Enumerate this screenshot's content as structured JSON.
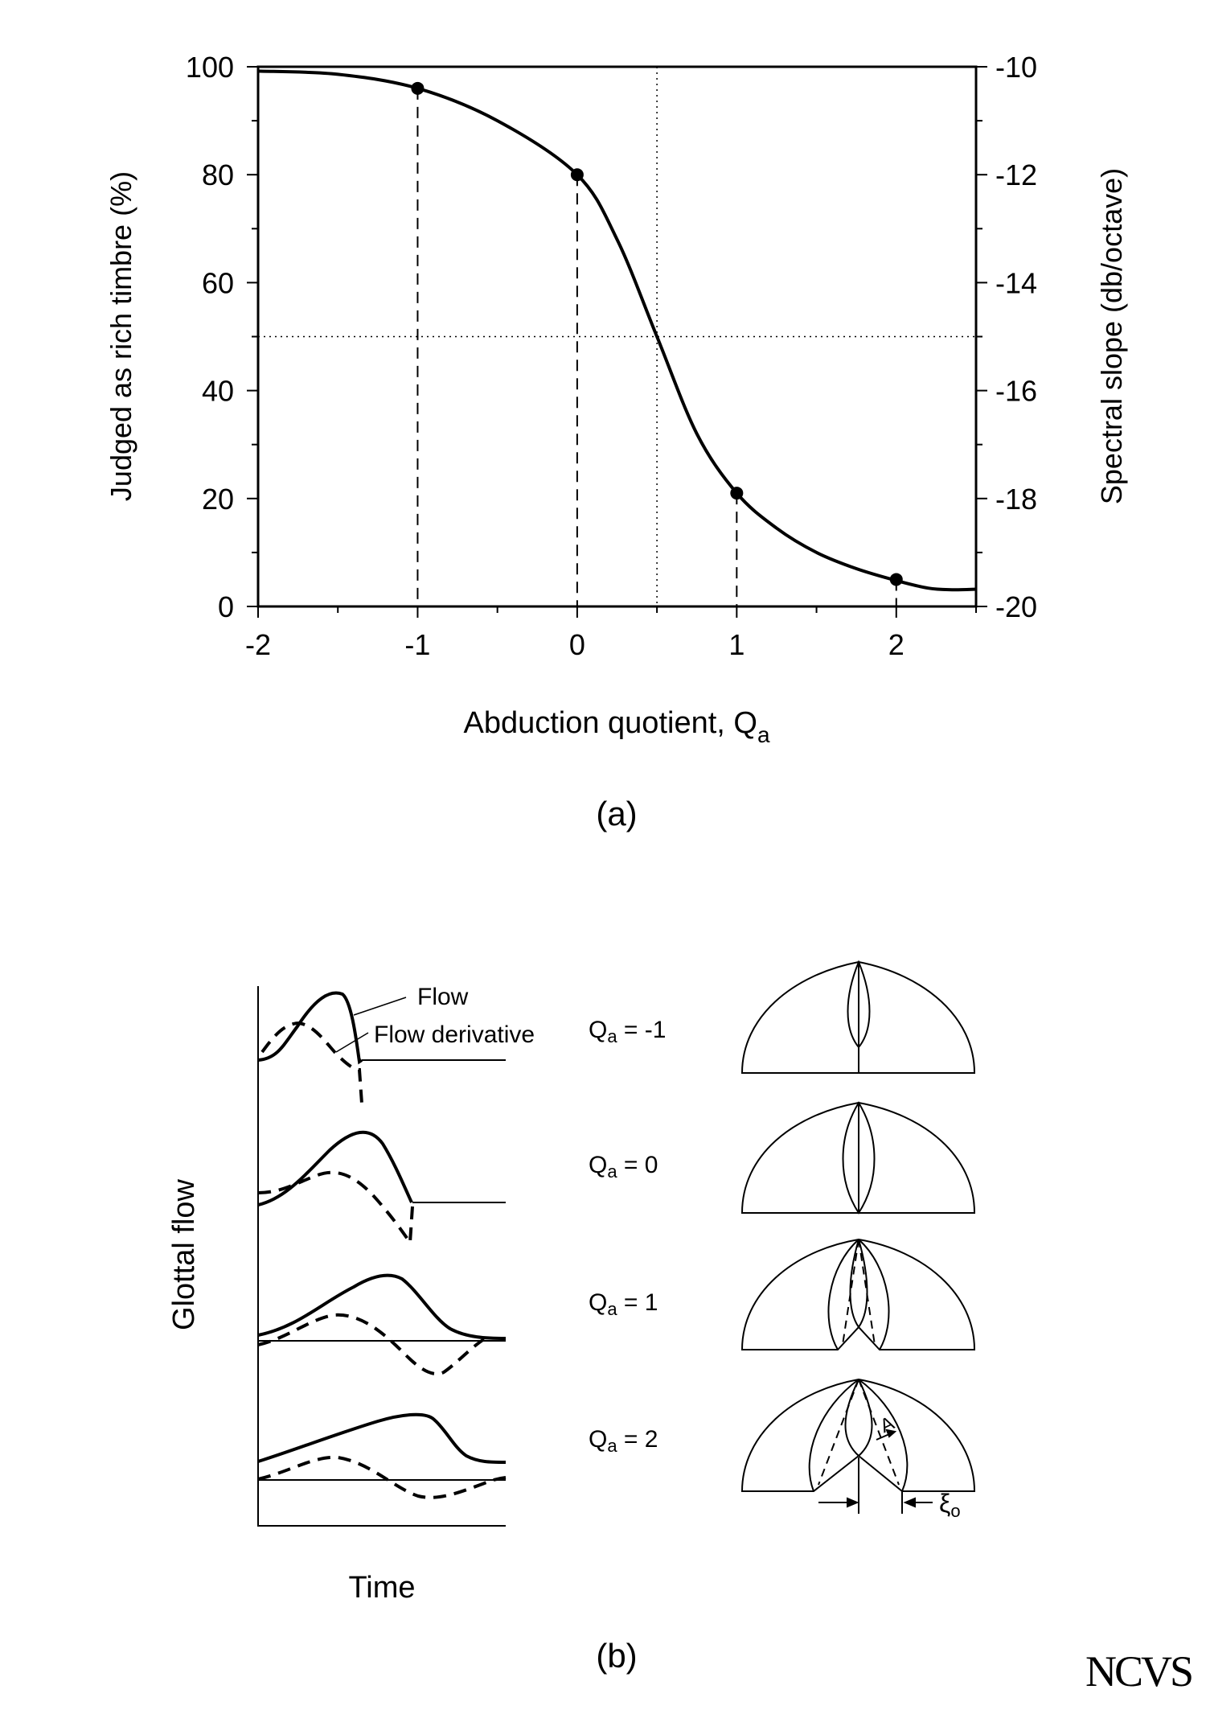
{
  "chart_data": [
    {
      "type": "line",
      "panel_label": "(a)",
      "xlabel": "Abduction quotient, Q",
      "xlabel_sub": "a",
      "ylabel": "Judged as rich timbre (%)",
      "y2label": "Spectral slope (db/octave)",
      "xlim": [
        -2,
        2.5
      ],
      "ylim": [
        0,
        100
      ],
      "y2lim": [
        -20,
        -10
      ],
      "xticks": [
        "-2",
        "-1",
        "0",
        "1",
        "2"
      ],
      "yticks": [
        "0",
        "20",
        "40",
        "60",
        "80",
        "100"
      ],
      "y2ticks": [
        "-20",
        "-18",
        "-16",
        "-14",
        "-12",
        "-10"
      ],
      "grid": false,
      "reference_lines": {
        "x": 0.5,
        "y": 50,
        "style": "dotted"
      },
      "series": [
        {
          "points": [
            {
              "x": -2.0,
              "y": 99.2
            },
            {
              "x": -1.5,
              "y": 98.6
            },
            {
              "x": -1.0,
              "y": 96.0
            },
            {
              "x": -0.5,
              "y": 90.0
            },
            {
              "x": 0.0,
              "y": 80.0
            },
            {
              "x": 0.25,
              "y": 68.0
            },
            {
              "x": 0.5,
              "y": 50.0
            },
            {
              "x": 0.75,
              "y": 32.0
            },
            {
              "x": 1.0,
              "y": 21.0
            },
            {
              "x": 1.25,
              "y": 14.5
            },
            {
              "x": 1.5,
              "y": 10.0
            },
            {
              "x": 1.75,
              "y": 7.0
            },
            {
              "x": 2.0,
              "y": 4.8
            },
            {
              "x": 2.2,
              "y": 3.4
            },
            {
              "x": 2.35,
              "y": 3.1
            },
            {
              "x": 2.5,
              "y": 3.2
            }
          ],
          "markers": [
            {
              "x": -1,
              "y": 96
            },
            {
              "x": 0,
              "y": 80
            },
            {
              "x": 1,
              "y": 21
            },
            {
              "x": 2,
              "y": 5
            }
          ],
          "marker_dropdown": "dashed"
        }
      ]
    },
    {
      "type": "line",
      "panel_label": "(b)",
      "ylabel": "Glottal flow",
      "xlabel": "Time",
      "annotations": [
        "Flow",
        "Flow derivative"
      ],
      "rows": [
        {
          "label": "Q",
          "label_sub": "a",
          "label_value": " = -1"
        },
        {
          "label": "Q",
          "label_sub": "a",
          "label_value": " = 0"
        },
        {
          "label": "Q",
          "label_sub": "a",
          "label_value": " = 1"
        },
        {
          "label": "Q",
          "label_sub": "a",
          "label_value": " = 2"
        }
      ],
      "diagram_labels": {
        "arrow": "A",
        "gap": "ξ",
        "gap_sub": "o"
      }
    }
  ],
  "logo_text": "NCVS"
}
